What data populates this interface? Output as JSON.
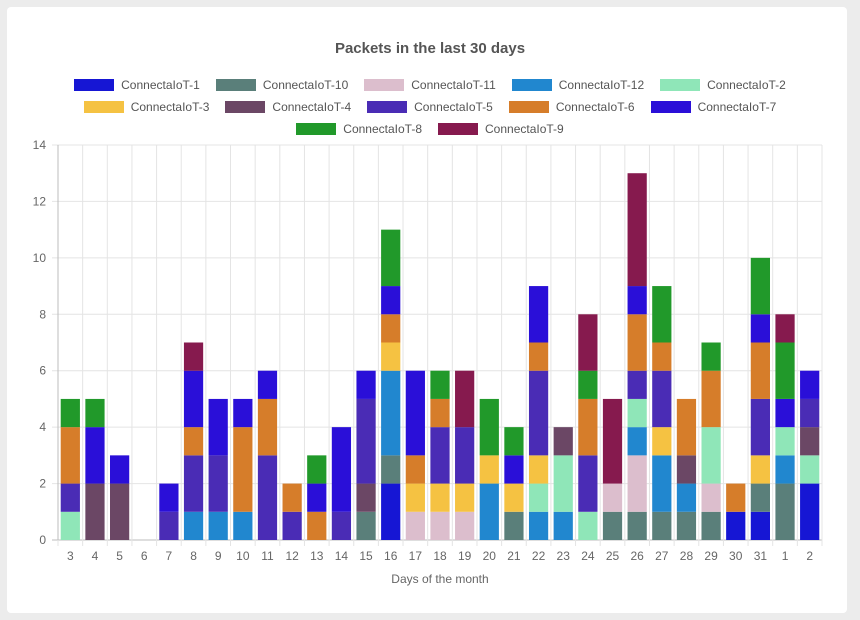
{
  "chart_data": {
    "type": "bar",
    "stacked": true,
    "title": "Packets in the last 30 days",
    "xlabel": "Days of the month",
    "ylabel": "",
    "ylim": [
      0,
      14
    ],
    "yticks": [
      0,
      2,
      4,
      6,
      8,
      10,
      12,
      14
    ],
    "grid": true,
    "legend_position": "top",
    "categories": [
      "3",
      "4",
      "5",
      "6",
      "7",
      "8",
      "9",
      "10",
      "11",
      "12",
      "13",
      "14",
      "15",
      "16",
      "17",
      "18",
      "19",
      "20",
      "21",
      "22",
      "23",
      "24",
      "25",
      "26",
      "27",
      "28",
      "29",
      "30",
      "31",
      "1",
      "2"
    ],
    "series": [
      {
        "name": "ConnectaIoT-1",
        "color": "#1616d4",
        "values": [
          0,
          0,
          0,
          0,
          0,
          0,
          0,
          0,
          0,
          0,
          0,
          0,
          0,
          2,
          0,
          0,
          0,
          0,
          0,
          0,
          0,
          0,
          0,
          0,
          0,
          0,
          0,
          1,
          1,
          0,
          2
        ]
      },
      {
        "name": "ConnectaIoT-10",
        "color": "#5a7f7a",
        "values": [
          0,
          0,
          0,
          0,
          0,
          0,
          0,
          0,
          0,
          0,
          0,
          0,
          1,
          1,
          0,
          0,
          0,
          0,
          1,
          0,
          0,
          0,
          1,
          1,
          1,
          1,
          1,
          0,
          1,
          2,
          0
        ]
      },
      {
        "name": "ConnectaIoT-11",
        "color": "#dcbecd",
        "values": [
          0,
          0,
          0,
          0,
          0,
          0,
          0,
          0,
          0,
          0,
          0,
          0,
          0,
          0,
          1,
          1,
          1,
          0,
          0,
          0,
          0,
          0,
          1,
          2,
          0,
          0,
          1,
          0,
          0,
          0,
          0
        ]
      },
      {
        "name": "ConnectaIoT-12",
        "color": "#2187cf",
        "values": [
          0,
          0,
          0,
          0,
          0,
          1,
          1,
          1,
          0,
          0,
          0,
          0,
          0,
          3,
          0,
          0,
          0,
          2,
          0,
          1,
          1,
          0,
          0,
          1,
          2,
          1,
          0,
          0,
          0,
          1,
          0
        ]
      },
      {
        "name": "ConnectaIoT-2",
        "color": "#8fe6b8",
        "values": [
          1,
          0,
          0,
          0,
          0,
          0,
          0,
          0,
          0,
          0,
          0,
          0,
          0,
          0,
          0,
          0,
          0,
          0,
          0,
          1,
          2,
          1,
          0,
          1,
          0,
          0,
          2,
          0,
          0,
          1,
          1
        ]
      },
      {
        "name": "ConnectaIoT-3",
        "color": "#f5c242",
        "values": [
          0,
          0,
          0,
          0,
          0,
          0,
          0,
          0,
          0,
          0,
          0,
          0,
          0,
          1,
          1,
          1,
          1,
          1,
          1,
          1,
          0,
          0,
          0,
          0,
          1,
          0,
          0,
          0,
          1,
          0,
          0
        ]
      },
      {
        "name": "ConnectaIoT-4",
        "color": "#6b4765",
        "values": [
          0,
          2,
          2,
          0,
          0,
          0,
          0,
          0,
          0,
          0,
          0,
          0,
          1,
          0,
          0,
          0,
          0,
          0,
          0,
          0,
          1,
          0,
          0,
          0,
          0,
          1,
          0,
          0,
          0,
          0,
          1
        ]
      },
      {
        "name": "ConnectaIoT-5",
        "color": "#4a2cb5",
        "values": [
          1,
          0,
          0,
          0,
          1,
          2,
          2,
          0,
          3,
          1,
          0,
          1,
          3,
          0,
          0,
          2,
          2,
          0,
          0,
          3,
          0,
          2,
          0,
          1,
          2,
          0,
          0,
          0,
          2,
          0,
          1
        ]
      },
      {
        "name": "ConnectaIoT-6",
        "color": "#d67d2a",
        "values": [
          2,
          0,
          0,
          0,
          0,
          1,
          0,
          3,
          2,
          1,
          1,
          0,
          0,
          1,
          1,
          1,
          0,
          0,
          0,
          1,
          0,
          2,
          0,
          2,
          1,
          2,
          2,
          1,
          2,
          0,
          0
        ]
      },
      {
        "name": "ConnectaIoT-7",
        "color": "#2a0fd8",
        "values": [
          0,
          2,
          1,
          0,
          1,
          2,
          2,
          1,
          1,
          0,
          1,
          3,
          1,
          1,
          3,
          0,
          0,
          0,
          1,
          2,
          0,
          0,
          0,
          1,
          0,
          0,
          0,
          0,
          1,
          1,
          1
        ]
      },
      {
        "name": "ConnectaIoT-8",
        "color": "#21992a",
        "values": [
          1,
          1,
          0,
          0,
          0,
          0,
          0,
          0,
          0,
          0,
          1,
          0,
          0,
          2,
          0,
          1,
          0,
          2,
          1,
          0,
          0,
          1,
          0,
          0,
          2,
          0,
          1,
          0,
          2,
          2,
          0
        ]
      },
      {
        "name": "ConnectaIoT-9",
        "color": "#861a4e",
        "values": [
          0,
          0,
          0,
          0,
          0,
          1,
          0,
          0,
          0,
          0,
          0,
          0,
          0,
          0,
          0,
          0,
          2,
          0,
          0,
          0,
          0,
          2,
          3,
          4,
          0,
          0,
          0,
          0,
          0,
          1,
          0
        ]
      }
    ]
  }
}
